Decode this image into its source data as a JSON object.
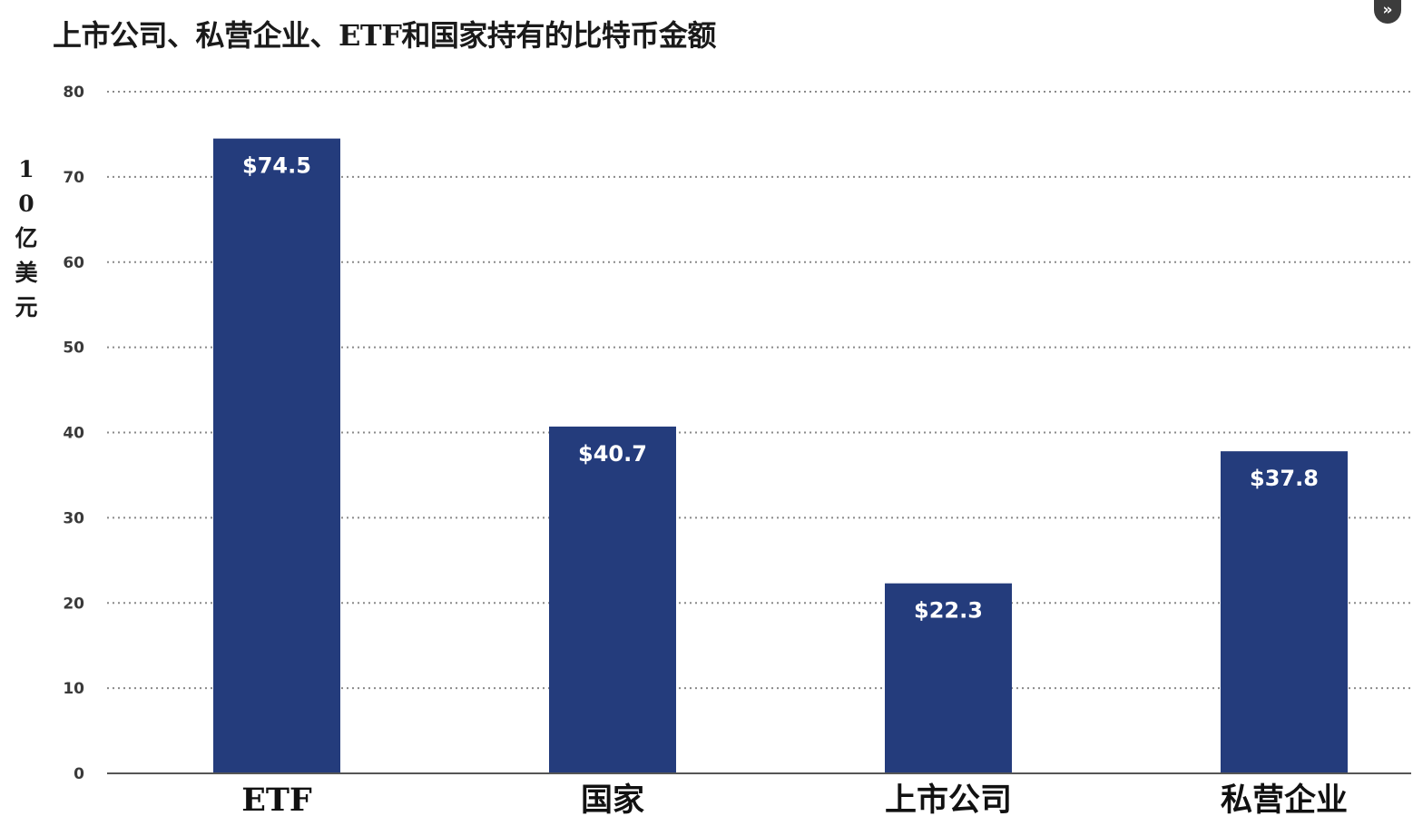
{
  "chart_data": {
    "type": "bar",
    "title": "上市公司、私营企业、ETF和国家持有的比特币金额",
    "ylabel": "10亿美元",
    "xlabel": "",
    "categories": [
      "ETF",
      "国家",
      "上市公司",
      "私营企业"
    ],
    "values": [
      74.5,
      40.7,
      22.3,
      37.8
    ],
    "data_labels": [
      "$74.5",
      "$40.7",
      "$22.3",
      "$37.8"
    ],
    "ylim": [
      0,
      80
    ],
    "yticks": [
      0,
      10,
      20,
      30,
      40,
      50,
      60,
      70,
      80
    ],
    "grid": true,
    "grid_style": "dotted",
    "bar_color": "#243c7c",
    "legend": "none"
  },
  "controls": {
    "next_icon": "double-chevron-right-icon",
    "next_glyph": "»"
  }
}
